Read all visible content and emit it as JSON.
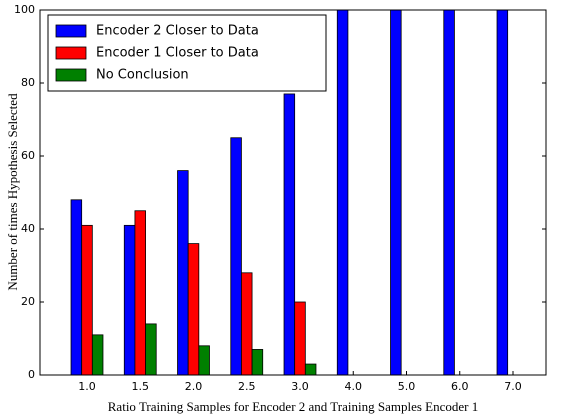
{
  "chart_data": {
    "type": "bar",
    "x_label": "Ratio Training Samples for Encoder 2 and Training Samples Encoder 1",
    "y_label": "Number of times Hypothesis Selected",
    "categories": [
      "1.0",
      "1.5",
      "2.0",
      "2.5",
      "3.0",
      "4.0",
      "5.0",
      "6.0",
      "7.0"
    ],
    "series": [
      {
        "name": "Encoder 2 Closer to Data",
        "color": "#0000ff",
        "values": [
          48,
          41,
          56,
          65,
          77,
          100,
          100,
          100,
          100
        ]
      },
      {
        "name": "Encoder 1 Closer to Data",
        "color": "#ff0000",
        "values": [
          41,
          45,
          36,
          28,
          20,
          0,
          0,
          0,
          0
        ]
      },
      {
        "name": "No Conclusion",
        "color": "#008000",
        "values": [
          11,
          14,
          8,
          7,
          3,
          0,
          0,
          0,
          0
        ]
      }
    ],
    "ylim": [
      0,
      100
    ],
    "yticks": [
      0,
      20,
      40,
      60,
      80,
      100
    ],
    "grid": false,
    "legend": "upper left"
  }
}
